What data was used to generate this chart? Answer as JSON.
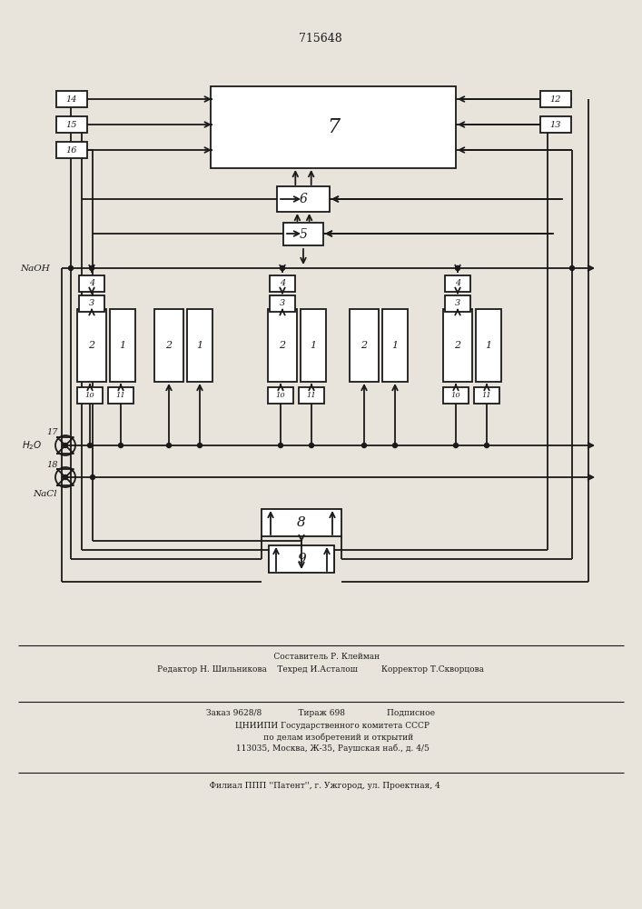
{
  "title": "715648",
  "bg_color": "#e8e4dc",
  "line_color": "#1a1a1a",
  "box_color": "#ffffff",
  "footer_line1": "     Составитель Р. Клейман",
  "footer_line2": "Редактор Н. Шильникова    Техред И.Асталош         Корректор Т.Скворцова",
  "footer_line3": "Заказ 9628/8              Тираж 698                Подписное",
  "footer_line4": "         ЦНИИПИ Государственного комитета СССР",
  "footer_line5": "              по делам изобретений и открытий",
  "footer_line6": "         113035, Москва, Ж-35, Раушская наб., д. 4/5",
  "footer_line7": "   Филиал ППП ''Патент'', г. Ужгород, ул. Проектная, 4"
}
